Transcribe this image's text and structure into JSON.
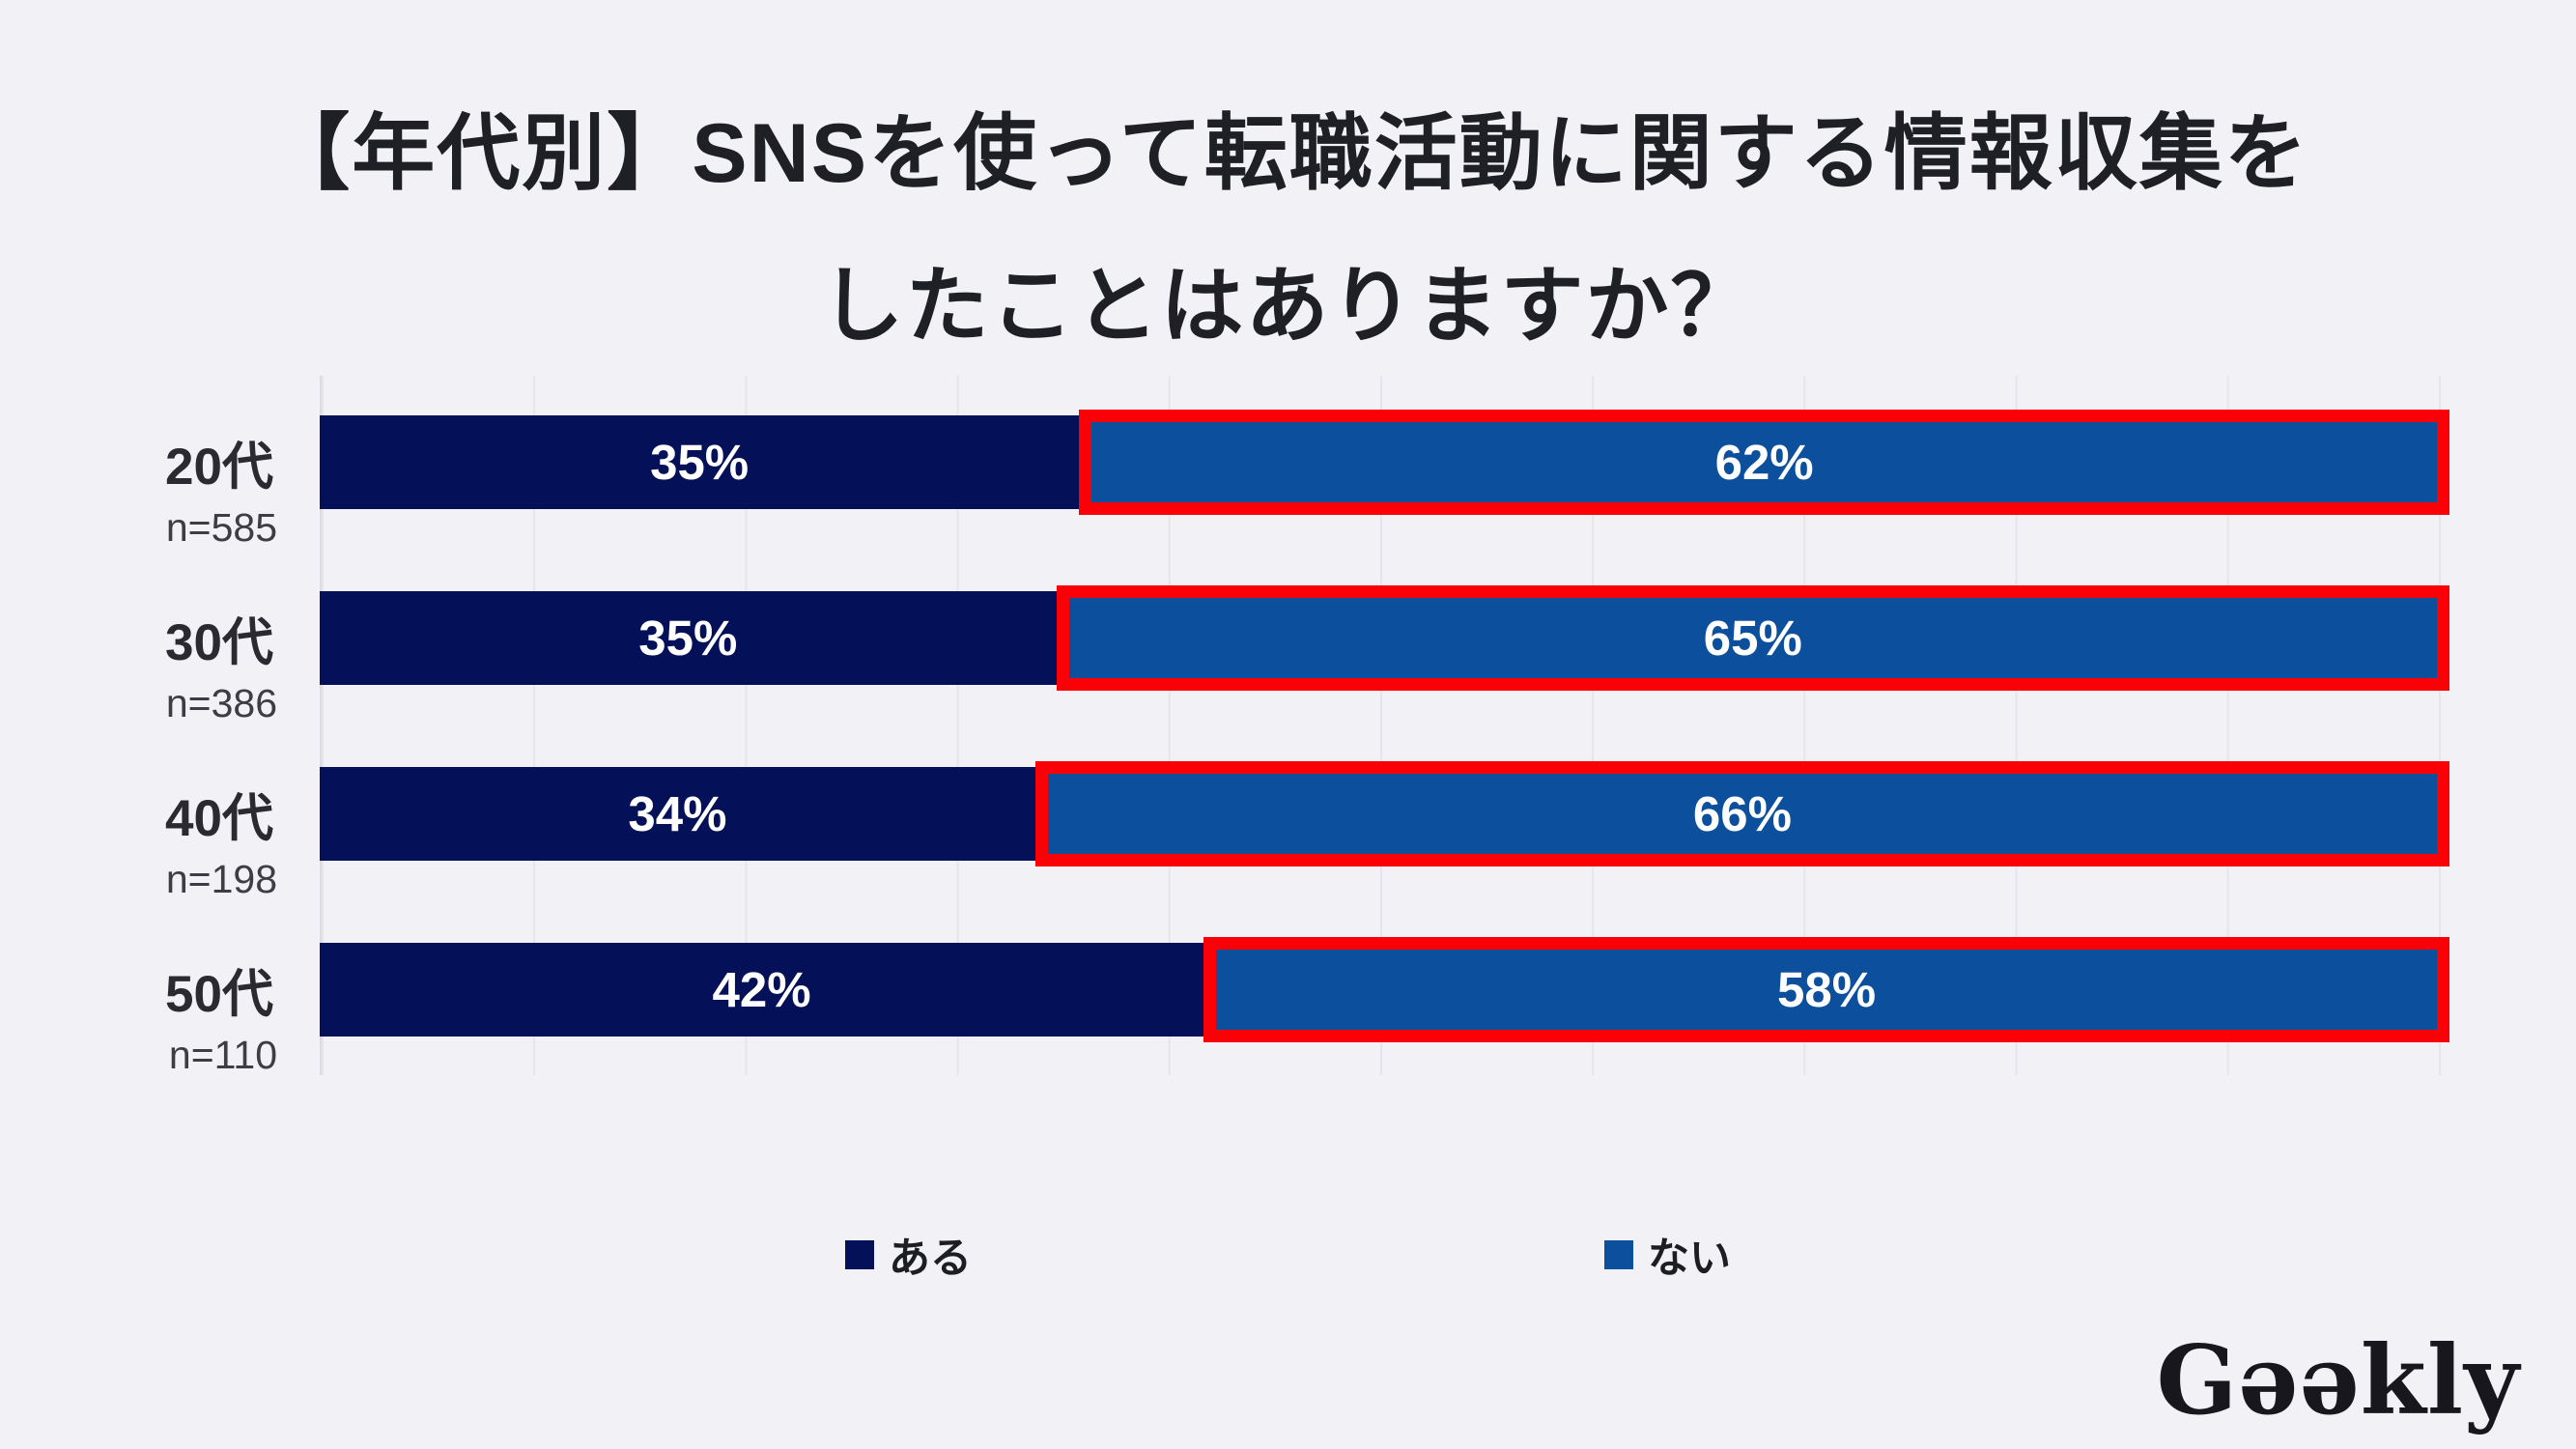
{
  "title": {
    "line1": "【年代別】SNSを使って転職活動に関する情報収集を",
    "line2": "したことはありますか？"
  },
  "chart_data": {
    "type": "bar",
    "orientation": "horizontal",
    "stacked": true,
    "title": "【年代別】SNSを使って転職活動に関する情報収集をしたことはありますか？",
    "categories": [
      "20代",
      "30代",
      "40代",
      "50代"
    ],
    "sample_sizes": [
      "n=585",
      "n=386",
      "n=198",
      "n=110"
    ],
    "series": [
      {
        "name": "ある",
        "color": "#041158",
        "values": [
          35,
          35,
          34,
          42
        ]
      },
      {
        "name": "ない",
        "color": "#0b4f9d",
        "border_color": "#fa0107",
        "values": [
          62,
          65,
          66,
          58
        ]
      }
    ],
    "bar_labels": [
      [
        "35%",
        "62%"
      ],
      [
        "35%",
        "65%"
      ],
      [
        "34%",
        "66%"
      ],
      [
        "42%",
        "58%"
      ]
    ],
    "unit": "%",
    "xlim": [
      0,
      100
    ],
    "gridline_step_pct": 10,
    "grid": true,
    "legend_position": "bottom"
  },
  "legend": {
    "items": [
      {
        "label": "ある",
        "color": "#041158"
      },
      {
        "label": "ない",
        "color": "#0b4f9d"
      }
    ]
  },
  "logo": {
    "text": "Gǝǝkly"
  }
}
